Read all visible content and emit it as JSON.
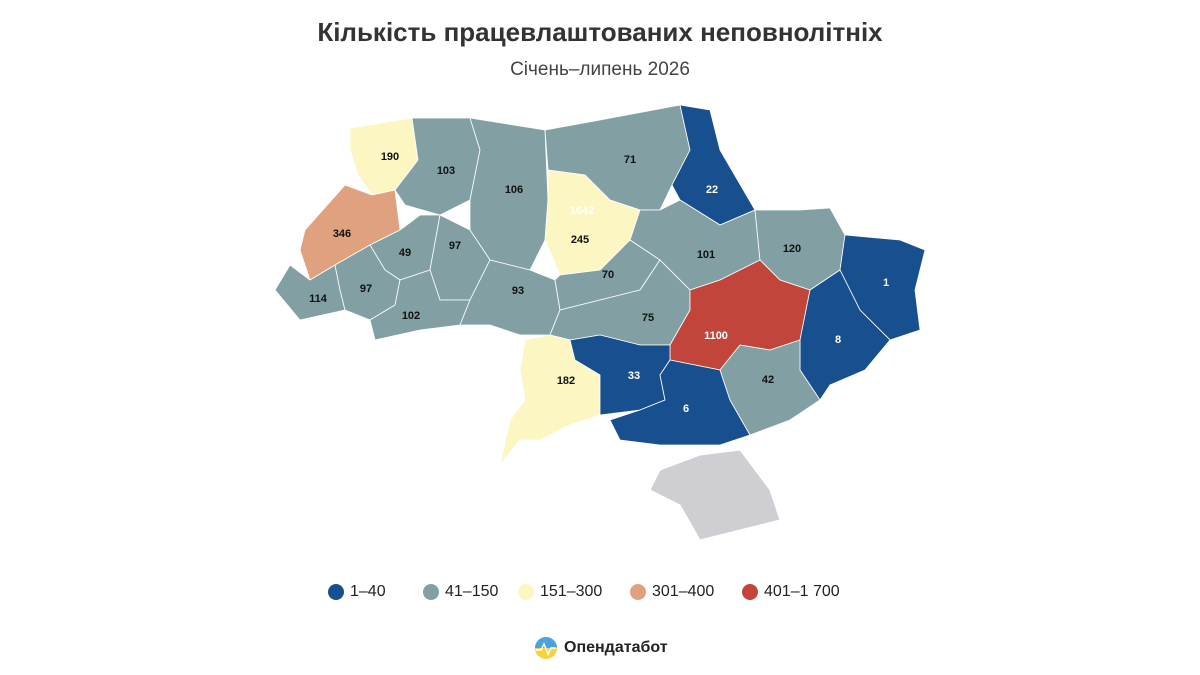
{
  "title": "Кількість працевлаштованих неповнолітніх",
  "subtitle": "Січень–липень 2026",
  "legend": [
    {
      "label": "1–40",
      "color": "#184f8e",
      "min": 1,
      "max": 40
    },
    {
      "label": "41–150",
      "color": "#82a0a3",
      "min": 41,
      "max": 150
    },
    {
      "label": "151–300",
      "color": "#fcf6c2",
      "min": 151,
      "max": 300
    },
    {
      "label": "301–400",
      "color": "#e0a17f",
      "min": 301,
      "max": 400
    },
    {
      "label": "401–1 700",
      "color": "#c2453c",
      "min": 401,
      "max": 1700
    }
  ],
  "regions": [
    {
      "value": 190
    },
    {
      "value": 103
    },
    {
      "value": 106
    },
    {
      "value": 71
    },
    {
      "value": 22
    },
    {
      "value": 346
    },
    {
      "value": 49
    },
    {
      "value": 97
    },
    {
      "value": 1642
    },
    {
      "value": 245
    },
    {
      "value": 101
    },
    {
      "value": 120
    },
    {
      "value": 1
    },
    {
      "value": 114
    },
    {
      "value": 97
    },
    {
      "value": 102
    },
    {
      "value": 93
    },
    {
      "value": 70
    },
    {
      "value": 75
    },
    {
      "value": 1100
    },
    {
      "value": 8
    },
    {
      "value": 182
    },
    {
      "value": 33
    },
    {
      "value": 6
    },
    {
      "value": 42
    }
  ],
  "brand": "Опендатабот"
}
